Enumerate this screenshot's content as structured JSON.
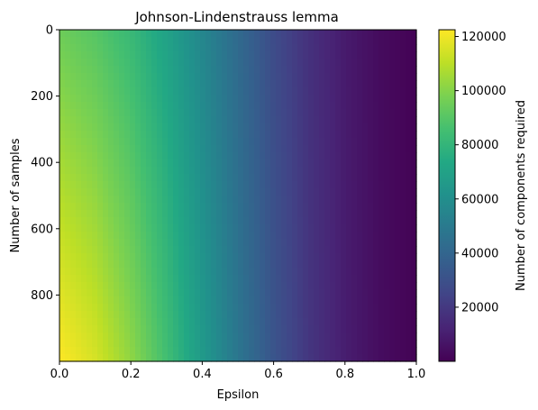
{
  "chart_data": {
    "type": "heatmap",
    "title": "Johnson-Lindenstrauss lemma",
    "xlabel": "Epsilon",
    "ylabel": "Number of samples",
    "colorbar_label": "Number of components required",
    "colormap": "viridis",
    "x_range": [
      0.0,
      1.0
    ],
    "y_range": [
      1000,
      0
    ],
    "y_inverted": true,
    "x_ticks": [
      0.0,
      0.2,
      0.4,
      0.6,
      0.8,
      1.0
    ],
    "x_tick_labels": [
      "0.0",
      "0.2",
      "0.4",
      "0.6",
      "0.8",
      "1.0"
    ],
    "y_ticks": [
      0,
      200,
      400,
      600,
      800
    ],
    "y_tick_labels": [
      "0",
      "200",
      "400",
      "600",
      "800"
    ],
    "color_range": [
      0,
      122500
    ],
    "colorbar_ticks": [
      20000,
      40000,
      60000,
      80000,
      100000,
      120000
    ],
    "colorbar_tick_labels": [
      "20000",
      "40000",
      "60000",
      "80000",
      "100000",
      "120000"
    ],
    "approx_values_by_epsilon": {
      "epsilon": [
        0.0,
        0.1,
        0.2,
        0.3,
        0.4,
        0.5,
        0.6,
        0.7,
        0.8,
        0.9,
        1.0
      ],
      "components_at_1000_samples": [
        122500,
        115000,
        102000,
        85000,
        66000,
        48000,
        32000,
        19000,
        10000,
        4000,
        500
      ],
      "components_at_0_samples": [
        95000,
        90000,
        82000,
        70000,
        56000,
        42000,
        28000,
        17000,
        9000,
        3500,
        500
      ]
    }
  }
}
